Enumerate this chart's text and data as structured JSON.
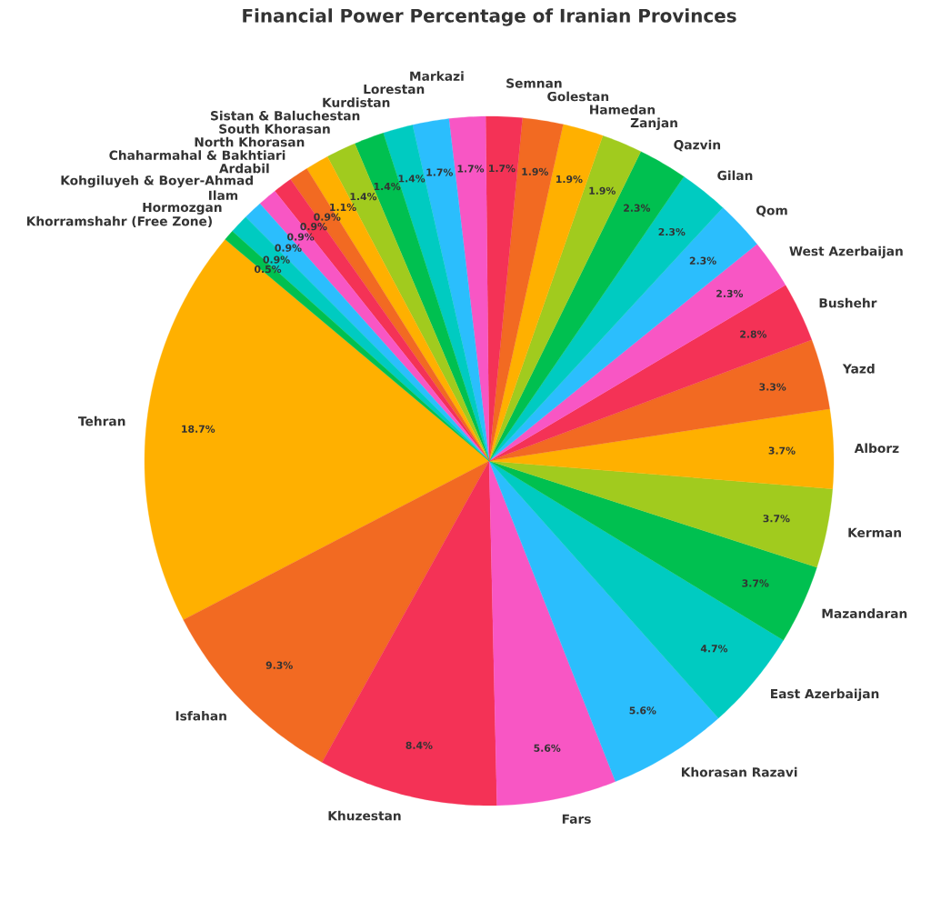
{
  "chart_data": {
    "type": "pie",
    "title": "Financial Power Percentage of Iranian Provinces",
    "categories": [
      "Tehran",
      "Isfahan",
      "Khuzestan",
      "Fars",
      "Khorasan Razavi",
      "East Azerbaijan",
      "Mazandaran",
      "Kerman",
      "Alborz",
      "Yazd",
      "Bushehr",
      "West Azerbaijan",
      "Qom",
      "Gilan",
      "Qazvin",
      "Zanjan",
      "Hamedan",
      "Golestan",
      "Semnan",
      "Markazi",
      "Lorestan",
      "Kurdistan",
      "Sistan & Baluchestan",
      "South Khorasan",
      "North Khorasan",
      "Chaharmahal & Bakhtiari",
      "Ardabil",
      "Kohgiluyeh & Boyer-Ahmad",
      "Ilam",
      "Hormozgan",
      "Khorramshahr (Free Zone)"
    ],
    "values": [
      18.7,
      9.3,
      8.4,
      5.6,
      5.6,
      4.7,
      3.7,
      3.7,
      3.7,
      3.3,
      2.8,
      2.3,
      2.3,
      2.3,
      2.3,
      1.9,
      1.9,
      1.9,
      1.7,
      1.7,
      1.7,
      1.4,
      1.4,
      1.4,
      1.1,
      0.9,
      0.9,
      0.9,
      0.9,
      0.9,
      0.5
    ],
    "value_labels": [
      "18.7%",
      "9.3%",
      "8.4%",
      "5.6%",
      "5.6%",
      "4.7%",
      "3.7%",
      "3.7%",
      "3.7%",
      "3.3%",
      "2.8%",
      "2.3%",
      "2.3%",
      "2.3%",
      "2.3%",
      "1.9%",
      "1.9%",
      "1.9%",
      "1.7%",
      "1.7%",
      "1.7%",
      "1.4%",
      "1.4%",
      "1.4%",
      "1.1%",
      "0.9%",
      "0.9%",
      "0.9%",
      "0.9%",
      "0.9%",
      "0.5%"
    ],
    "colors": [
      "#ffb000",
      "#f26a22",
      "#f43256",
      "#f856c4",
      "#2bbefd",
      "#00cbc1",
      "#00c050",
      "#a1cb1e",
      "#ffb000",
      "#f26a22",
      "#f43256",
      "#f856c4",
      "#2bbefd",
      "#00cbc1",
      "#00c050",
      "#a1cb1e",
      "#ffb000",
      "#f26a22",
      "#f43256",
      "#f856c4",
      "#2bbefd",
      "#00cbc1",
      "#00c050",
      "#a1cb1e",
      "#ffb000",
      "#f26a22",
      "#f43256",
      "#f856c4",
      "#2bbefd",
      "#00cbc1",
      "#00c050"
    ]
  }
}
